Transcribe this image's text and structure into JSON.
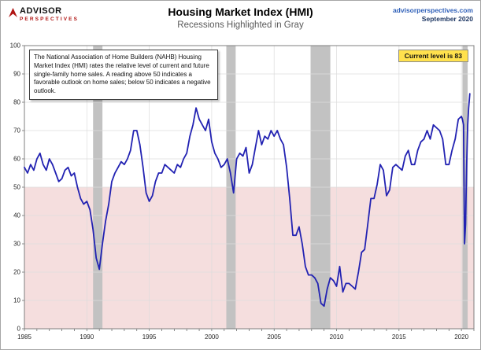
{
  "header": {
    "logo_line1": "ADVISOR",
    "logo_line2": "PERSPECTIVES",
    "title": "Housing Market Index (HMI)",
    "subtitle": "Recessions Highlighted in Gray",
    "site": "advisorperspectives.com",
    "date": "September 2020"
  },
  "annotation": {
    "text": "The National Association of Home Builders (NAHB) Housing Market Index (HMI) rates the relative level of current and future single-family home sales. A reading above 50 indicates a favorable outlook on home sales; below 50 indicates a negative outlook."
  },
  "badge": {
    "text": "Current level is 83"
  },
  "colors": {
    "line": "#2222b2",
    "below_zone": "#f5dede",
    "recession": "#c2c2c2",
    "grid": "#dcdcdc",
    "site_blue": "#2e5fb8",
    "date_navy": "#1f3864",
    "logo_red": "#b01513",
    "badge_bg": "#ffe14d",
    "badge_border": "#8c8c8c"
  },
  "chart_data": {
    "type": "line",
    "title": "Housing Market Index (HMI)",
    "subtitle": "Recessions Highlighted in Gray",
    "xlabel": "",
    "ylabel": "",
    "xlim": [
      1985,
      2021
    ],
    "ylim": [
      0,
      100
    ],
    "xticks": [
      1985,
      1990,
      1995,
      2000,
      2005,
      2010,
      2015,
      2020
    ],
    "yticks": [
      0,
      10,
      20,
      30,
      40,
      50,
      60,
      70,
      80,
      90,
      100
    ],
    "grid": true,
    "legend_position": "none",
    "neutral_level": 50,
    "current_level": 83,
    "series_name": "NAHB Housing Market Index",
    "series_color": "#2222b2",
    "recessions": [
      [
        1990.5,
        1991.25
      ],
      [
        2001.17,
        2001.92
      ],
      [
        2007.92,
        2009.5
      ],
      [
        2020.08,
        2020.5
      ]
    ],
    "points": [
      [
        1985,
        57
      ],
      [
        1985.25,
        55
      ],
      [
        1985.5,
        58
      ],
      [
        1985.75,
        56
      ],
      [
        1986,
        60
      ],
      [
        1986.25,
        62
      ],
      [
        1986.5,
        58
      ],
      [
        1986.75,
        56
      ],
      [
        1987,
        60
      ],
      [
        1987.25,
        58
      ],
      [
        1987.5,
        55
      ],
      [
        1987.75,
        52
      ],
      [
        1988,
        53
      ],
      [
        1988.25,
        56
      ],
      [
        1988.5,
        57
      ],
      [
        1988.75,
        54
      ],
      [
        1989,
        55
      ],
      [
        1989.25,
        50
      ],
      [
        1989.5,
        46
      ],
      [
        1989.75,
        44
      ],
      [
        1990,
        45
      ],
      [
        1990.25,
        42
      ],
      [
        1990.5,
        35
      ],
      [
        1990.75,
        25
      ],
      [
        1991,
        21
      ],
      [
        1991.25,
        30
      ],
      [
        1991.5,
        38
      ],
      [
        1991.75,
        44
      ],
      [
        1992,
        52
      ],
      [
        1992.25,
        55
      ],
      [
        1992.5,
        57
      ],
      [
        1992.75,
        59
      ],
      [
        1993,
        58
      ],
      [
        1993.25,
        60
      ],
      [
        1993.5,
        63
      ],
      [
        1993.75,
        70
      ],
      [
        1994,
        70
      ],
      [
        1994.25,
        65
      ],
      [
        1994.5,
        57
      ],
      [
        1994.75,
        48
      ],
      [
        1995,
        45
      ],
      [
        1995.25,
        47
      ],
      [
        1995.5,
        52
      ],
      [
        1995.75,
        55
      ],
      [
        1996,
        55
      ],
      [
        1996.25,
        58
      ],
      [
        1996.5,
        57
      ],
      [
        1996.75,
        56
      ],
      [
        1997,
        55
      ],
      [
        1997.25,
        58
      ],
      [
        1997.5,
        57
      ],
      [
        1997.75,
        60
      ],
      [
        1998,
        62
      ],
      [
        1998.25,
        68
      ],
      [
        1998.5,
        72
      ],
      [
        1998.75,
        78
      ],
      [
        1999,
        74
      ],
      [
        1999.25,
        72
      ],
      [
        1999.5,
        70
      ],
      [
        1999.75,
        74
      ],
      [
        2000,
        66
      ],
      [
        2000.25,
        62
      ],
      [
        2000.5,
        60
      ],
      [
        2000.75,
        57
      ],
      [
        2001,
        58
      ],
      [
        2001.25,
        60
      ],
      [
        2001.5,
        55
      ],
      [
        2001.75,
        48
      ],
      [
        2002,
        60
      ],
      [
        2002.25,
        62
      ],
      [
        2002.5,
        61
      ],
      [
        2002.75,
        64
      ],
      [
        2003,
        55
      ],
      [
        2003.25,
        58
      ],
      [
        2003.5,
        64
      ],
      [
        2003.75,
        70
      ],
      [
        2004,
        65
      ],
      [
        2004.25,
        68
      ],
      [
        2004.5,
        67
      ],
      [
        2004.75,
        70
      ],
      [
        2005,
        68
      ],
      [
        2005.25,
        70
      ],
      [
        2005.5,
        67
      ],
      [
        2005.75,
        65
      ],
      [
        2006,
        57
      ],
      [
        2006.25,
        46
      ],
      [
        2006.5,
        33
      ],
      [
        2006.75,
        33
      ],
      [
        2007,
        36
      ],
      [
        2007.25,
        30
      ],
      [
        2007.5,
        22
      ],
      [
        2007.75,
        19
      ],
      [
        2008,
        19
      ],
      [
        2008.25,
        18
      ],
      [
        2008.5,
        16
      ],
      [
        2008.75,
        9
      ],
      [
        2009,
        8
      ],
      [
        2009.25,
        14
      ],
      [
        2009.5,
        18
      ],
      [
        2009.75,
        17
      ],
      [
        2010,
        15
      ],
      [
        2010.25,
        22
      ],
      [
        2010.5,
        13
      ],
      [
        2010.75,
        16
      ],
      [
        2011,
        16
      ],
      [
        2011.25,
        15
      ],
      [
        2011.5,
        14
      ],
      [
        2011.75,
        20
      ],
      [
        2012,
        27
      ],
      [
        2012.25,
        28
      ],
      [
        2012.5,
        37
      ],
      [
        2012.75,
        46
      ],
      [
        2013,
        46
      ],
      [
        2013.25,
        51
      ],
      [
        2013.5,
        58
      ],
      [
        2013.75,
        56
      ],
      [
        2014,
        47
      ],
      [
        2014.25,
        49
      ],
      [
        2014.5,
        57
      ],
      [
        2014.75,
        58
      ],
      [
        2015,
        57
      ],
      [
        2015.25,
        56
      ],
      [
        2015.5,
        61
      ],
      [
        2015.75,
        63
      ],
      [
        2016,
        58
      ],
      [
        2016.25,
        58
      ],
      [
        2016.5,
        63
      ],
      [
        2016.75,
        66
      ],
      [
        2017,
        67
      ],
      [
        2017.25,
        70
      ],
      [
        2017.5,
        67
      ],
      [
        2017.75,
        72
      ],
      [
        2018,
        71
      ],
      [
        2018.25,
        70
      ],
      [
        2018.5,
        67
      ],
      [
        2018.75,
        58
      ],
      [
        2019,
        58
      ],
      [
        2019.25,
        63
      ],
      [
        2019.5,
        67
      ],
      [
        2019.75,
        74
      ],
      [
        2020,
        75
      ],
      [
        2020.08,
        74
      ],
      [
        2020.17,
        72
      ],
      [
        2020.25,
        30
      ],
      [
        2020.33,
        37
      ],
      [
        2020.42,
        58
      ],
      [
        2020.5,
        72
      ],
      [
        2020.58,
        78
      ],
      [
        2020.67,
        83
      ]
    ]
  }
}
